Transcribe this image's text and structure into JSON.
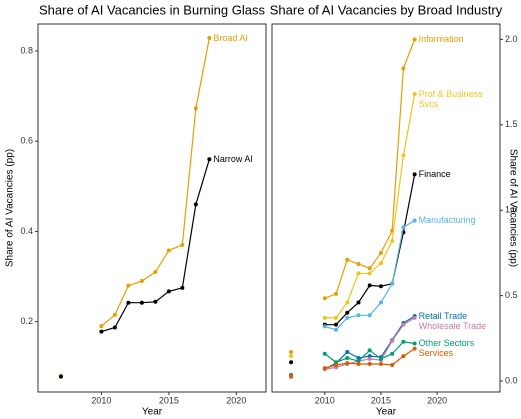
{
  "chart_data": [
    {
      "type": "line",
      "title": "Share of AI Vacancies in Burning Glass",
      "xlabel": "Year",
      "ylabel": "Share of AI Vacancies (pp)",
      "x": [
        2007,
        2008,
        2009,
        2010,
        2011,
        2012,
        2013,
        2014,
        2015,
        2016,
        2017,
        2018
      ],
      "xlim": [
        2005.3,
        2022.2
      ],
      "xticks": [
        2010,
        2015,
        2020
      ],
      "ylim": [
        0.044,
        0.86
      ],
      "yticks": [
        0.2,
        0.4,
        0.6,
        0.8
      ],
      "series": [
        {
          "name": "Broad AI",
          "color": "#E69F00",
          "values": [
            0.08,
            null,
            null,
            0.19,
            0.215,
            0.28,
            0.29,
            0.31,
            0.358,
            0.37,
            0.673,
            0.829
          ]
        },
        {
          "name": "Narrow AI",
          "color": "#000000",
          "values": [
            0.078,
            null,
            null,
            0.178,
            0.187,
            0.242,
            0.242,
            0.244,
            0.267,
            0.275,
            0.46,
            0.56
          ]
        }
      ]
    },
    {
      "type": "line",
      "title": "Share of AI Vacancies by Broad Industry",
      "xlabel": "Year",
      "y2label": "Share of AI Vacancies (pp)",
      "x": [
        2007,
        2008,
        2009,
        2010,
        2011,
        2012,
        2013,
        2014,
        2015,
        2016,
        2017,
        2018
      ],
      "xlim": [
        2005.3,
        2025.6
      ],
      "xticks": [
        2010,
        2015,
        2020
      ],
      "y2lim": [
        -0.064,
        2.09
      ],
      "y2ticks": [
        {
          "value": 0,
          "label": "0.0"
        },
        0.5,
        {
          "value": 1,
          "label": "1.0"
        },
        1.5,
        {
          "value": 2,
          "label": "2.0"
        }
      ],
      "series": [
        {
          "name": "Information",
          "color": "#E69F00",
          "axis": "y2",
          "values": [
            0.17,
            null,
            null,
            0.485,
            0.51,
            0.71,
            0.685,
            0.66,
            0.75,
            0.88,
            1.83,
            2.0
          ]
        },
        {
          "name": "Prof & Business Svcs",
          "color": "#F0C419",
          "axis": "y2",
          "values": [
            0.146,
            null,
            null,
            0.37,
            0.37,
            0.46,
            0.63,
            0.63,
            0.69,
            0.82,
            1.32,
            1.68
          ]
        },
        {
          "name": "Finance",
          "color": "#000000",
          "axis": "y2",
          "values": [
            0.11,
            null,
            null,
            0.33,
            0.33,
            0.4,
            0.46,
            0.56,
            0.555,
            0.57,
            0.87,
            1.21
          ]
        },
        {
          "name": "Manufacturing",
          "color": "#56B4E9",
          "axis": "y2",
          "values": [
            0.035,
            null,
            null,
            0.32,
            0.3,
            0.37,
            0.385,
            0.385,
            0.46,
            0.57,
            0.9,
            0.94
          ]
        },
        {
          "name": "Retail Trade",
          "color": "#0072B2",
          "axis": "y2",
          "values": [
            0.035,
            null,
            null,
            0.07,
            0.105,
            0.17,
            0.135,
            0.146,
            0.14,
            0.24,
            0.34,
            0.38
          ]
        },
        {
          "name": "Wholesale Trade",
          "color": "#CC79A7",
          "axis": "y2",
          "values": [
            0.023,
            null,
            null,
            0.07,
            0.08,
            0.1,
            0.117,
            0.13,
            0.123,
            0.235,
            0.33,
            0.37
          ]
        },
        {
          "name": "Other Sectors",
          "color": "#009E73",
          "axis": "y2",
          "values": [
            0.035,
            null,
            null,
            0.16,
            0.11,
            0.135,
            0.117,
            0.18,
            0.13,
            0.16,
            0.23,
            0.22
          ]
        },
        {
          "name": "Services",
          "color": "#D55E00",
          "axis": "y2",
          "values": [
            0.03,
            null,
            null,
            0.076,
            0.094,
            0.105,
            0.1,
            0.1,
            0.1,
            0.094,
            0.146,
            0.19
          ]
        }
      ]
    }
  ]
}
